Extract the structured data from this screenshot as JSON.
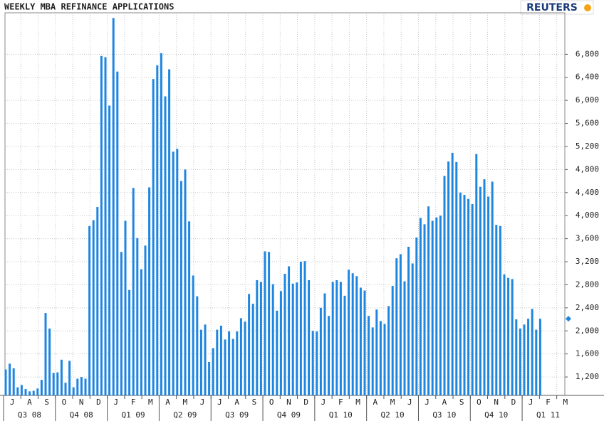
{
  "chart_data": {
    "type": "bar",
    "title": "WEEKLY MBA REFINANCE APPLICATIONS",
    "logo": "REUTERS",
    "values": [
      1330,
      1430,
      1350,
      1020,
      1060,
      990,
      950,
      960,
      1000,
      1150,
      2310,
      2040,
      1270,
      1280,
      1500,
      1100,
      1480,
      1020,
      1170,
      1200,
      1170,
      3820,
      3920,
      4150,
      6770,
      6750,
      5910,
      7430,
      6500,
      3370,
      3910,
      2710,
      4480,
      3610,
      3070,
      3480,
      4490,
      6370,
      6610,
      6820,
      6070,
      6540,
      5110,
      5160,
      4600,
      4800,
      3900,
      2960,
      2600,
      2020,
      2110,
      1460,
      1700,
      2020,
      2090,
      1850,
      1990,
      1860,
      1990,
      2220,
      2160,
      2640,
      2470,
      2880,
      2850,
      3380,
      3370,
      2810,
      2350,
      2690,
      2990,
      3120,
      2820,
      2840,
      3200,
      3210,
      2880,
      2000,
      1990,
      2400,
      2650,
      2260,
      2850,
      2880,
      2850,
      2610,
      3060,
      3000,
      2950,
      2750,
      2700,
      2260,
      2060,
      2370,
      2170,
      2120,
      2430,
      2780,
      3260,
      3330,
      2860,
      3460,
      3170,
      3620,
      3960,
      3850,
      4160,
      3910,
      3970,
      4000,
      4690,
      4940,
      5090,
      4930,
      4400,
      4360,
      4290,
      4200,
      5070,
      4500,
      4630,
      4330,
      4590,
      3840,
      3820,
      2980,
      2920,
      2900,
      2200,
      2040,
      2110,
      2210,
      2380,
      2020,
      2210
    ],
    "color": "#1f86e0",
    "ylim": [
      880,
      7520
    ],
    "yticks": [
      {
        "value": 1200,
        "label": "1,200"
      },
      {
        "value": 1600,
        "label": "1,600"
      },
      {
        "value": 2000,
        "label": "2,000"
      },
      {
        "value": 2400,
        "label": "2,400"
      },
      {
        "value": 2800,
        "label": "2,800"
      },
      {
        "value": 3200,
        "label": "3,200"
      },
      {
        "value": 3600,
        "label": "3,600"
      },
      {
        "value": 4000,
        "label": "4,000"
      },
      {
        "value": 4400,
        "label": "4,400"
      },
      {
        "value": 4800,
        "label": "4,800"
      },
      {
        "value": 5200,
        "label": "5,200"
      },
      {
        "value": 5600,
        "label": "5,600"
      },
      {
        "value": 6000,
        "label": "6,000"
      },
      {
        "value": 6400,
        "label": "6,400"
      },
      {
        "value": 6800,
        "label": "6,800"
      }
    ],
    "months": [
      "J",
      "A",
      "S",
      "O",
      "N",
      "D",
      "J",
      "F",
      "M",
      "A",
      "M",
      "J",
      "J",
      "A",
      "S",
      "O",
      "N",
      "D",
      "J",
      "F",
      "M",
      "A",
      "M",
      "J",
      "J",
      "A",
      "S",
      "O",
      "N",
      "D",
      "J",
      "F",
      "M"
    ],
    "quarters": [
      "Q3 08",
      "Q4 08",
      "Q1 09",
      "Q2 09",
      "Q3 09",
      "Q4 09",
      "Q1 10",
      "Q2 10",
      "Q3 10",
      "Q4 10",
      "Q1 11"
    ],
    "grid": true
  }
}
